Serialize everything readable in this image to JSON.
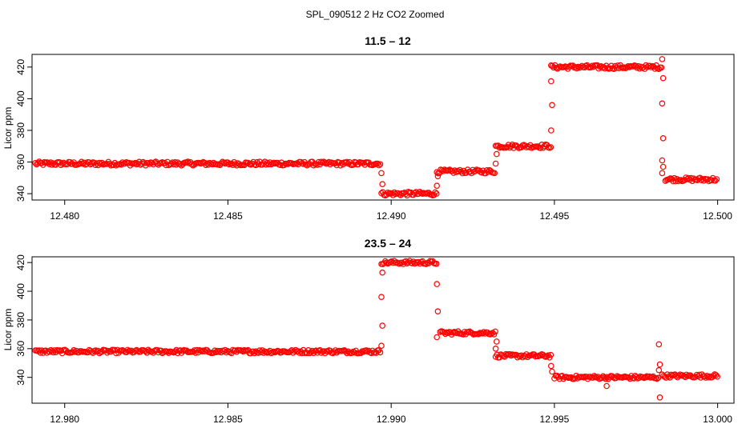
{
  "figure_title": "SPL_090512  2 Hz CO2 Zoomed",
  "chart_data": [
    {
      "type": "scatter",
      "title": "11.5 – 12",
      "xlabel": "",
      "ylabel": "Licor ppm",
      "xlim": [
        12.479,
        12.5005
      ],
      "ylim": [
        336,
        428
      ],
      "xticks": [
        12.48,
        12.485,
        12.49,
        12.495,
        12.5
      ],
      "xtick_labels": [
        "12.480",
        "12.485",
        "12.490",
        "12.495",
        "12.500"
      ],
      "yticks": [
        340,
        360,
        380,
        400,
        420
      ],
      "ytick_labels": [
        "340",
        "360",
        "380",
        "400",
        "420"
      ],
      "grid": false,
      "marker_color": "#ff0000",
      "segments": [
        {
          "x": [
            12.4791,
            12.4897
          ],
          "y": 359
        },
        {
          "x": [
            12.4897,
            12.4914
          ],
          "y": 340
        },
        {
          "x": [
            12.4914,
            12.4932
          ],
          "y": 354
        },
        {
          "x": [
            12.4932,
            12.4949
          ],
          "y": 370
        },
        {
          "x": [
            12.4949,
            12.4983
          ],
          "y": 420
        },
        {
          "x": [
            12.4984,
            12.5
          ],
          "y": 349
        }
      ],
      "transitions": [
        {
          "x": 12.4897,
          "y": [
            353,
            346
          ]
        },
        {
          "x": 12.4914,
          "y": [
            345,
            351
          ]
        },
        {
          "x": 12.4932,
          "y": [
            359,
            365
          ]
        },
        {
          "x": 12.4949,
          "y": [
            380,
            396,
            411
          ]
        },
        {
          "x": 12.4983,
          "y": [
            425,
            413,
            397,
            375,
            361,
            357,
            353
          ]
        }
      ]
    },
    {
      "type": "scatter",
      "title": "23.5 – 24",
      "xlabel": "",
      "ylabel": "Licor ppm",
      "xlim": [
        12.979,
        13.0005
      ],
      "ylim": [
        322,
        424
      ],
      "xticks": [
        12.98,
        12.985,
        12.99,
        12.995,
        13.0
      ],
      "xtick_labels": [
        "12.980",
        "12.985",
        "12.990",
        "12.995",
        "13.000"
      ],
      "yticks": [
        340,
        360,
        380,
        400,
        420
      ],
      "ytick_labels": [
        "340",
        "360",
        "380",
        "400",
        "420"
      ],
      "grid": false,
      "marker_color": "#ff0000",
      "segments": [
        {
          "x": [
            12.9791,
            12.9897
          ],
          "y": 358
        },
        {
          "x": [
            12.9897,
            12.9914
          ],
          "y": 420
        },
        {
          "x": [
            12.9915,
            12.9932
          ],
          "y": 371
        },
        {
          "x": [
            12.9932,
            12.9949
          ],
          "y": 355
        },
        {
          "x": [
            12.995,
            12.9982
          ],
          "y": 340
        },
        {
          "x": [
            12.9983,
            13.0
          ],
          "y": 341
        }
      ],
      "transitions": [
        {
          "x": 12.9897,
          "y": [
            362,
            376,
            396,
            413
          ]
        },
        {
          "x": 12.9914,
          "y": [
            405,
            386,
            368
          ]
        },
        {
          "x": 12.9932,
          "y": [
            360,
            365
          ]
        },
        {
          "x": 12.9949,
          "y": [
            348,
            344
          ]
        },
        {
          "x": 12.9966,
          "y": [
            334
          ]
        },
        {
          "x": 12.9982,
          "y": [
            363,
            349,
            345,
            326
          ]
        }
      ]
    }
  ]
}
